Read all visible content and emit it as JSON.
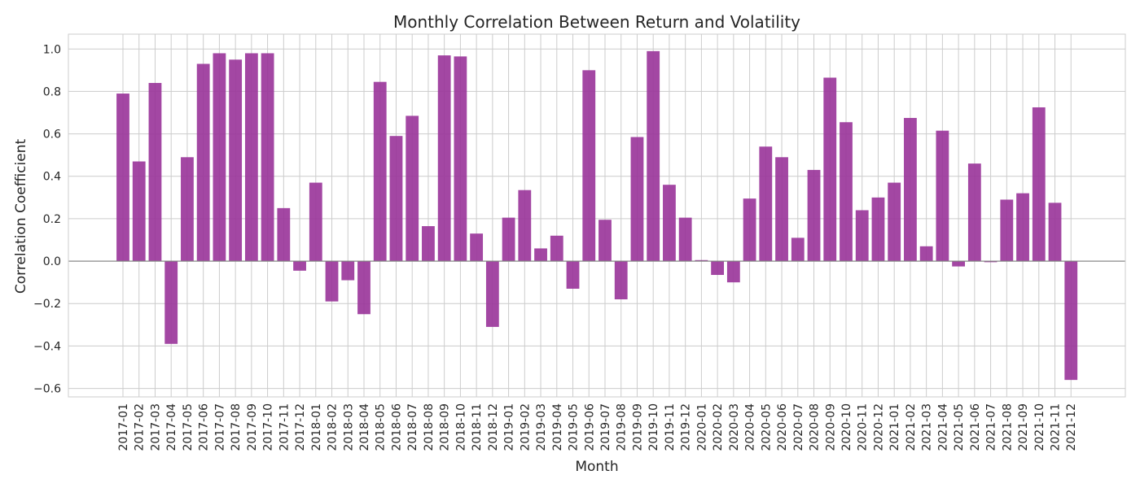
{
  "chart_data": {
    "type": "bar",
    "title": "Monthly Correlation Between Return and Volatility",
    "xlabel": "Month",
    "ylabel": "Correlation Coefficient",
    "ylim": [
      -0.64,
      1.07
    ],
    "yticks": [
      1.0,
      0.8,
      0.6,
      0.4,
      0.2,
      0.0,
      -0.2,
      -0.4,
      -0.6
    ],
    "ytick_labels": [
      "1.0",
      "0.8",
      "0.6",
      "0.4",
      "0.2",
      "0.0",
      "−0.2",
      "−0.4",
      "−0.6"
    ],
    "grid": true,
    "zero_line": true,
    "bar_color": "#993399",
    "categories": [
      "2017-01",
      "2017-02",
      "2017-03",
      "2017-04",
      "2017-05",
      "2017-06",
      "2017-07",
      "2017-08",
      "2017-09",
      "2017-10",
      "2017-11",
      "2017-12",
      "2018-01",
      "2018-02",
      "2018-03",
      "2018-04",
      "2018-05",
      "2018-06",
      "2018-07",
      "2018-08",
      "2018-09",
      "2018-10",
      "2018-11",
      "2018-12",
      "2019-01",
      "2019-02",
      "2019-03",
      "2019-04",
      "2019-05",
      "2019-06",
      "2019-07",
      "2019-08",
      "2019-09",
      "2019-10",
      "2019-11",
      "2019-12",
      "2020-01",
      "2020-02",
      "2020-03",
      "2020-04",
      "2020-05",
      "2020-06",
      "2020-07",
      "2020-08",
      "2020-09",
      "2020-10",
      "2020-11",
      "2020-12",
      "2021-01",
      "2021-02",
      "2021-03",
      "2021-04",
      "2021-05",
      "2021-06",
      "2021-07",
      "2021-08",
      "2021-09",
      "2021-10",
      "2021-11",
      "2021-12"
    ],
    "values": [
      0.79,
      0.47,
      0.84,
      -0.39,
      0.49,
      0.93,
      0.98,
      0.95,
      0.98,
      0.98,
      0.25,
      -0.045,
      0.37,
      -0.19,
      -0.09,
      -0.25,
      0.845,
      0.59,
      0.685,
      0.165,
      0.97,
      0.965,
      0.13,
      -0.31,
      0.205,
      0.335,
      0.06,
      0.12,
      -0.13,
      0.9,
      0.195,
      -0.18,
      0.585,
      0.99,
      0.36,
      0.205,
      0.005,
      -0.065,
      -0.1,
      0.295,
      0.54,
      0.49,
      0.11,
      0.43,
      0.865,
      0.655,
      0.24,
      0.3,
      0.37,
      0.675,
      0.07,
      0.615,
      -0.025,
      0.46,
      -0.005,
      0.29,
      0.32,
      0.725,
      0.275,
      -0.56
    ]
  }
}
